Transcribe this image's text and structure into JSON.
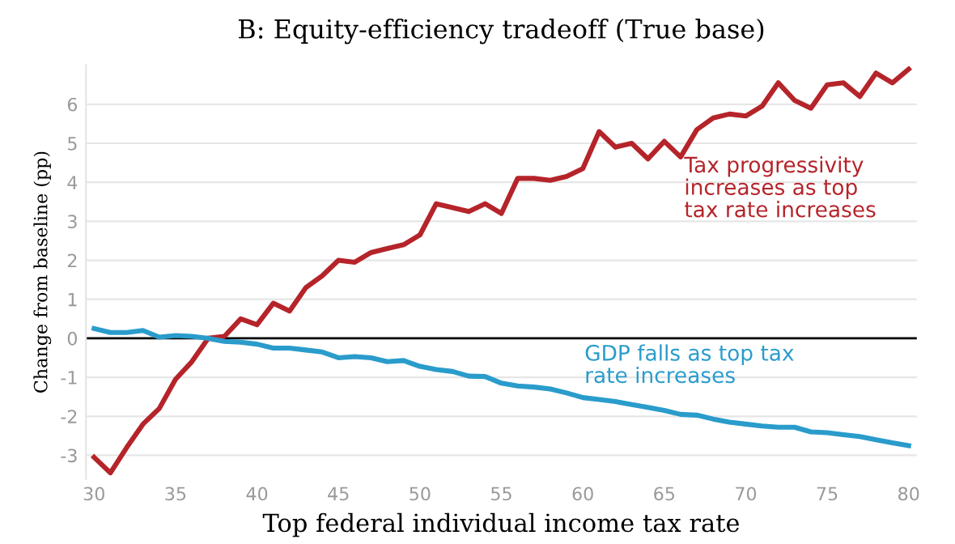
{
  "chart_data": {
    "type": "line",
    "title": "B: Equity-efficiency tradeoff (True base)",
    "xlabel": "Top federal individual income tax rate",
    "ylabel": "Change from baseline (pp)",
    "x": [
      30,
      31,
      32,
      33,
      34,
      35,
      36,
      37,
      38,
      39,
      40,
      41,
      42,
      43,
      44,
      45,
      46,
      47,
      48,
      49,
      50,
      51,
      52,
      53,
      54,
      55,
      56,
      57,
      58,
      59,
      60,
      61,
      62,
      63,
      64,
      65,
      66,
      67,
      68,
      69,
      70,
      71,
      72,
      73,
      74,
      75,
      76,
      77,
      78,
      79,
      80
    ],
    "series": [
      {
        "name": "Tax progressivity\nincreases as top\ntax rate increases",
        "color": "#b5242a",
        "values": [
          -3.05,
          -3.45,
          -2.8,
          -2.2,
          -1.8,
          -1.05,
          -0.6,
          0.0,
          0.05,
          0.5,
          0.35,
          0.9,
          0.7,
          1.3,
          1.6,
          2.0,
          1.95,
          2.2,
          2.3,
          2.4,
          2.65,
          3.45,
          3.35,
          3.25,
          3.45,
          3.2,
          4.1,
          4.1,
          4.05,
          4.15,
          4.35,
          5.3,
          4.9,
          5.0,
          4.6,
          5.05,
          4.65,
          5.35,
          5.65,
          5.75,
          5.7,
          5.95,
          6.55,
          6.1,
          5.9,
          6.5,
          6.55,
          6.2,
          6.8,
          6.55,
          6.9
        ]
      },
      {
        "name": "GDP falls as top tax\nrate increases",
        "color": "#2a9ccb",
        "values": [
          0.25,
          0.15,
          0.15,
          0.2,
          0.03,
          0.07,
          0.05,
          0.0,
          -0.08,
          -0.1,
          -0.15,
          -0.25,
          -0.25,
          -0.3,
          -0.35,
          -0.5,
          -0.47,
          -0.5,
          -0.6,
          -0.57,
          -0.72,
          -0.8,
          -0.85,
          -0.97,
          -0.98,
          -1.15,
          -1.22,
          -1.25,
          -1.3,
          -1.4,
          -1.52,
          -1.57,
          -1.62,
          -1.7,
          -1.77,
          -1.85,
          -1.95,
          -1.97,
          -2.07,
          -2.15,
          -2.2,
          -2.25,
          -2.28,
          -2.28,
          -2.4,
          -2.42,
          -2.47,
          -2.52,
          -2.6,
          -2.68,
          -2.75
        ]
      }
    ],
    "xlim": [
      29.5,
      80.5
    ],
    "ylim": [
      -3.6,
      7.0
    ],
    "xticks": [
      30,
      35,
      40,
      45,
      50,
      55,
      60,
      65,
      70,
      75,
      80
    ],
    "yticks": [
      -3,
      -2,
      -1,
      0,
      1,
      2,
      3,
      4,
      5,
      6
    ],
    "ref_lines": [
      {
        "axis": "y",
        "value": 0,
        "color": "#000000"
      }
    ],
    "grid": "y",
    "legend": false,
    "marker": "none",
    "line_style": "solid"
  }
}
